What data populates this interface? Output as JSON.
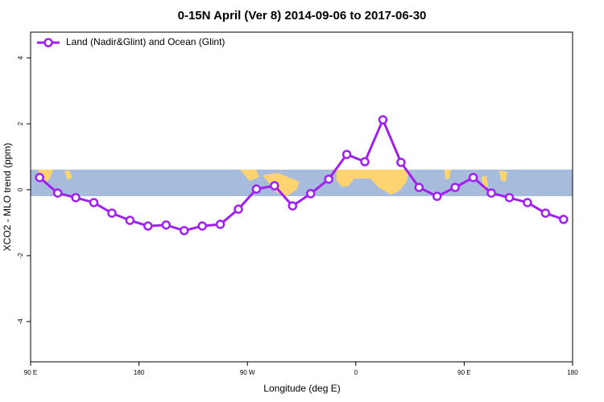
{
  "chart_data": {
    "type": "line",
    "title": "0-15N April (Ver 8)   2014-09-06 to 2017-06-30",
    "x_label": "Longitude (deg E)",
    "y_label": "XCO2 - MLO trend (ppm)",
    "x": [
      97.5,
      112.5,
      127.5,
      142.5,
      157.5,
      172.5,
      187.5,
      202.5,
      217.5,
      232.5,
      247.5,
      262.5,
      277.5,
      292.5,
      307.5,
      322.5,
      337.5,
      352.5,
      367.5,
      382.5,
      397.5,
      412.5,
      427.5,
      442.5,
      457.5,
      472.5,
      487.5,
      502.5,
      517.5,
      532.5
    ],
    "series": [
      {
        "name": "Land (Nadir&Glint) and Ocean (Glint)",
        "color": "#a020f0",
        "values": [
          0.37,
          -0.1,
          -0.24,
          -0.39,
          -0.71,
          -0.93,
          -1.1,
          -1.07,
          -1.24,
          -1.1,
          -1.05,
          -0.59,
          0.02,
          0.12,
          -0.49,
          -0.12,
          0.32,
          1.07,
          0.85,
          2.12,
          0.83,
          0.07,
          -0.2,
          0.07,
          0.37,
          -0.1,
          -0.24,
          -0.39,
          -0.71,
          -0.9
        ]
      }
    ],
    "xlim": [
      90,
      540
    ],
    "ylim": [
      -5.22,
      4.78
    ],
    "xticks": [
      {
        "value": 90,
        "label": "90 E"
      },
      {
        "value": 180,
        "label": "180"
      },
      {
        "value": 270,
        "label": "90 W"
      },
      {
        "value": 360,
        "label": "0"
      },
      {
        "value": 450,
        "label": "90 E"
      },
      {
        "value": 540,
        "label": "180"
      }
    ],
    "yticks": [
      -4,
      -2,
      0,
      2,
      4
    ],
    "legend": "top-left"
  }
}
